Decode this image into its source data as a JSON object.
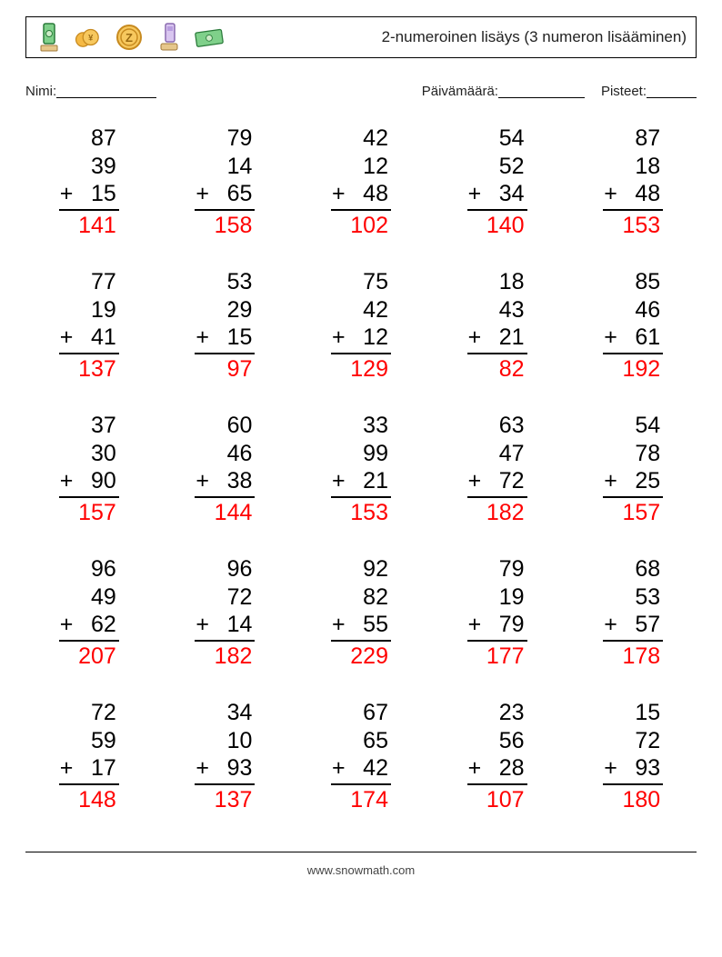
{
  "header": {
    "title": "2-numeroinen lisäys (3 numeron lisääminen)",
    "title_fontsize": 17,
    "title_color": "#222222",
    "border_color": "#000000"
  },
  "meta": {
    "name_label": "Nimi:",
    "date_label": "Päivämäärä:",
    "score_label": "Pisteet:",
    "fontsize": 15,
    "text_color": "#222222",
    "underline_widths": {
      "name": 110,
      "date": 95,
      "score": 55
    }
  },
  "worksheet": {
    "type": "arithmetic-grid",
    "operator": "+",
    "rows": 5,
    "cols": 5,
    "number_fontsize": 25,
    "number_color": "#000000",
    "answer_color": "#ff0000",
    "rule_color": "#000000",
    "rule_width": 2,
    "background_color": "#ffffff",
    "problems": [
      {
        "a": 87,
        "b": 39,
        "c": 15,
        "ans": 141
      },
      {
        "a": 79,
        "b": 14,
        "c": 65,
        "ans": 158
      },
      {
        "a": 42,
        "b": 12,
        "c": 48,
        "ans": 102
      },
      {
        "a": 54,
        "b": 52,
        "c": 34,
        "ans": 140
      },
      {
        "a": 87,
        "b": 18,
        "c": 48,
        "ans": 153
      },
      {
        "a": 77,
        "b": 19,
        "c": 41,
        "ans": 137
      },
      {
        "a": 53,
        "b": 29,
        "c": 15,
        "ans": 97
      },
      {
        "a": 75,
        "b": 42,
        "c": 12,
        "ans": 129
      },
      {
        "a": 18,
        "b": 43,
        "c": 21,
        "ans": 82
      },
      {
        "a": 85,
        "b": 46,
        "c": 61,
        "ans": 192
      },
      {
        "a": 37,
        "b": 30,
        "c": 90,
        "ans": 157
      },
      {
        "a": 60,
        "b": 46,
        "c": 38,
        "ans": 144
      },
      {
        "a": 33,
        "b": 99,
        "c": 21,
        "ans": 153
      },
      {
        "a": 63,
        "b": 47,
        "c": 72,
        "ans": 182
      },
      {
        "a": 54,
        "b": 78,
        "c": 25,
        "ans": 157
      },
      {
        "a": 96,
        "b": 49,
        "c": 62,
        "ans": 207
      },
      {
        "a": 96,
        "b": 72,
        "c": 14,
        "ans": 182
      },
      {
        "a": 92,
        "b": 82,
        "c": 55,
        "ans": 229
      },
      {
        "a": 79,
        "b": 19,
        "c": 79,
        "ans": 177
      },
      {
        "a": 68,
        "b": 53,
        "c": 57,
        "ans": 178
      },
      {
        "a": 72,
        "b": 59,
        "c": 17,
        "ans": 148
      },
      {
        "a": 34,
        "b": 10,
        "c": 93,
        "ans": 137
      },
      {
        "a": 67,
        "b": 65,
        "c": 42,
        "ans": 174
      },
      {
        "a": 23,
        "b": 56,
        "c": 28,
        "ans": 107
      },
      {
        "a": 15,
        "b": 72,
        "c": 93,
        "ans": 180
      }
    ]
  },
  "footer": {
    "text": "www.snowmath.com",
    "fontsize": 13,
    "color": "#444444",
    "divider_color": "#000000"
  }
}
